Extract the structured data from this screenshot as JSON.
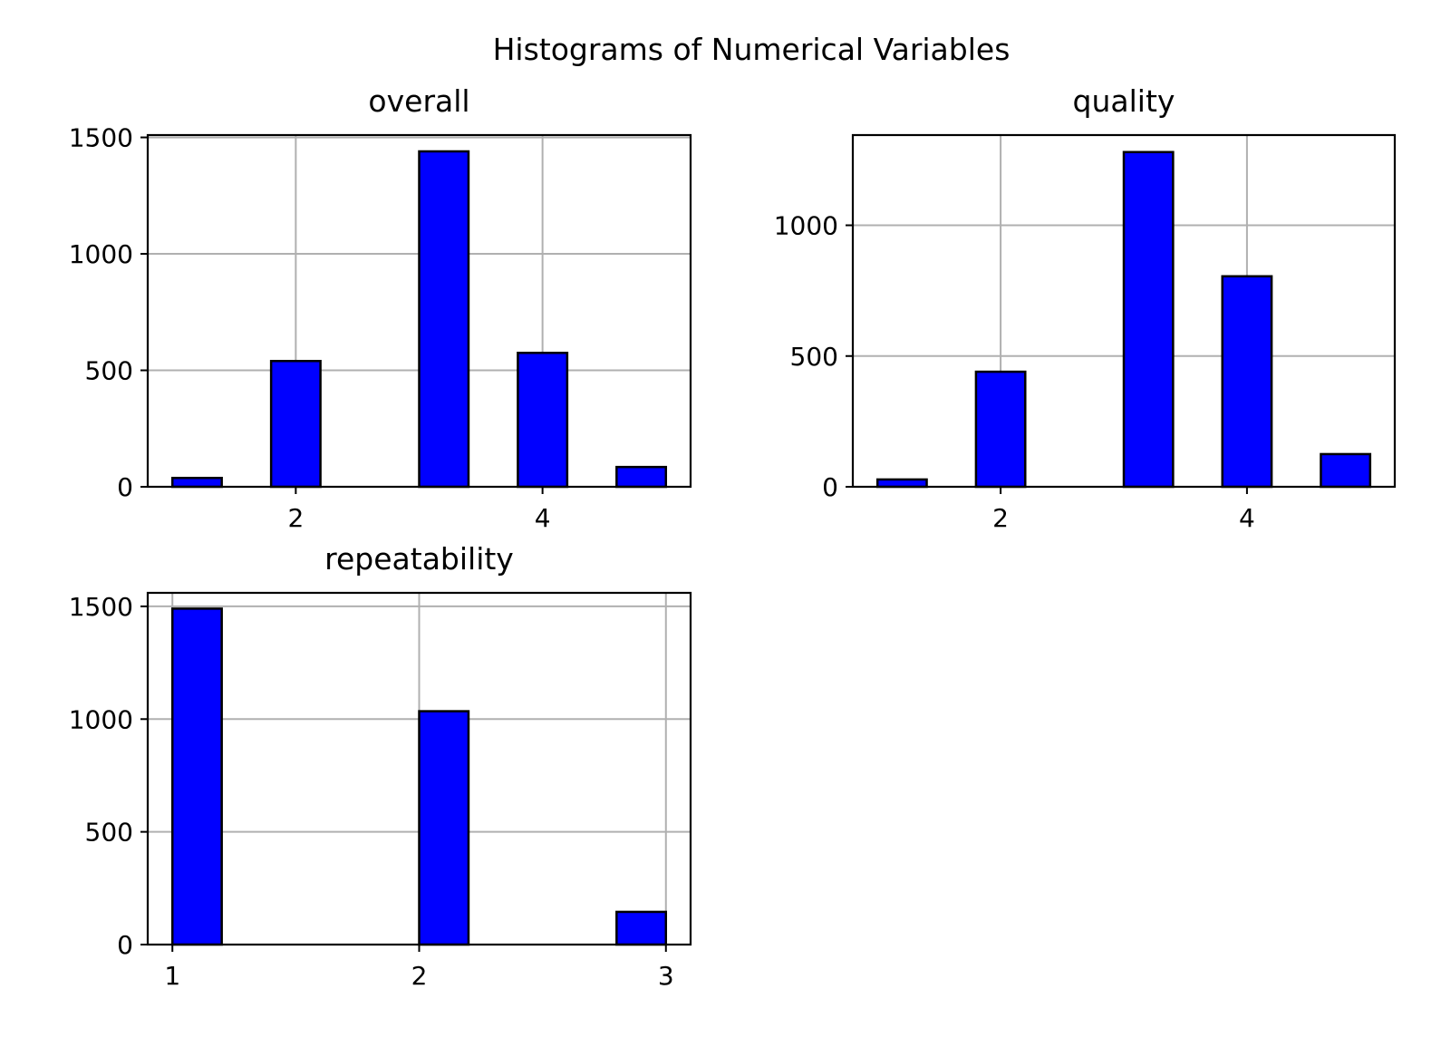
{
  "figure": {
    "title": "Histograms of Numerical Variables"
  },
  "colors": {
    "bar_fill": "#0000ff",
    "bar_edge": "#000000",
    "grid": "#b0b0b0"
  },
  "chart_data": [
    {
      "type": "bar",
      "title": "overall",
      "xlabel": "",
      "ylabel": "",
      "xlim": [
        0.8,
        5.2
      ],
      "ylim": [
        0,
        1510
      ],
      "grid": true,
      "x_ticks": [
        2,
        4
      ],
      "y_ticks": [
        0,
        500,
        1000,
        1500
      ],
      "bins": [
        {
          "start": 1.0,
          "end": 1.4,
          "value": 38
        },
        {
          "start": 1.8,
          "end": 2.2,
          "value": 540
        },
        {
          "start": 3.0,
          "end": 3.4,
          "value": 1440
        },
        {
          "start": 3.8,
          "end": 4.2,
          "value": 575
        },
        {
          "start": 4.6,
          "end": 5.0,
          "value": 85
        }
      ]
    },
    {
      "type": "bar",
      "title": "quality",
      "xlabel": "",
      "ylabel": "",
      "xlim": [
        0.8,
        5.2
      ],
      "ylim": [
        0,
        1345
      ],
      "grid": true,
      "x_ticks": [
        2,
        4
      ],
      "y_ticks": [
        0,
        500,
        1000
      ],
      "bins": [
        {
          "start": 1.0,
          "end": 1.4,
          "value": 28
        },
        {
          "start": 1.8,
          "end": 2.2,
          "value": 440
        },
        {
          "start": 3.0,
          "end": 3.4,
          "value": 1280
        },
        {
          "start": 3.8,
          "end": 4.2,
          "value": 805
        },
        {
          "start": 4.6,
          "end": 5.0,
          "value": 125
        }
      ]
    },
    {
      "type": "bar",
      "title": "repeatability",
      "xlabel": "",
      "ylabel": "",
      "xlim": [
        0.9,
        3.1
      ],
      "ylim": [
        0,
        1560
      ],
      "grid": true,
      "x_ticks": [
        1,
        2,
        3
      ],
      "y_ticks": [
        0,
        500,
        1000,
        1500
      ],
      "bins": [
        {
          "start": 1.0,
          "end": 1.2,
          "value": 1490
        },
        {
          "start": 2.0,
          "end": 2.2,
          "value": 1035
        },
        {
          "start": 2.8,
          "end": 3.0,
          "value": 145
        }
      ]
    }
  ]
}
